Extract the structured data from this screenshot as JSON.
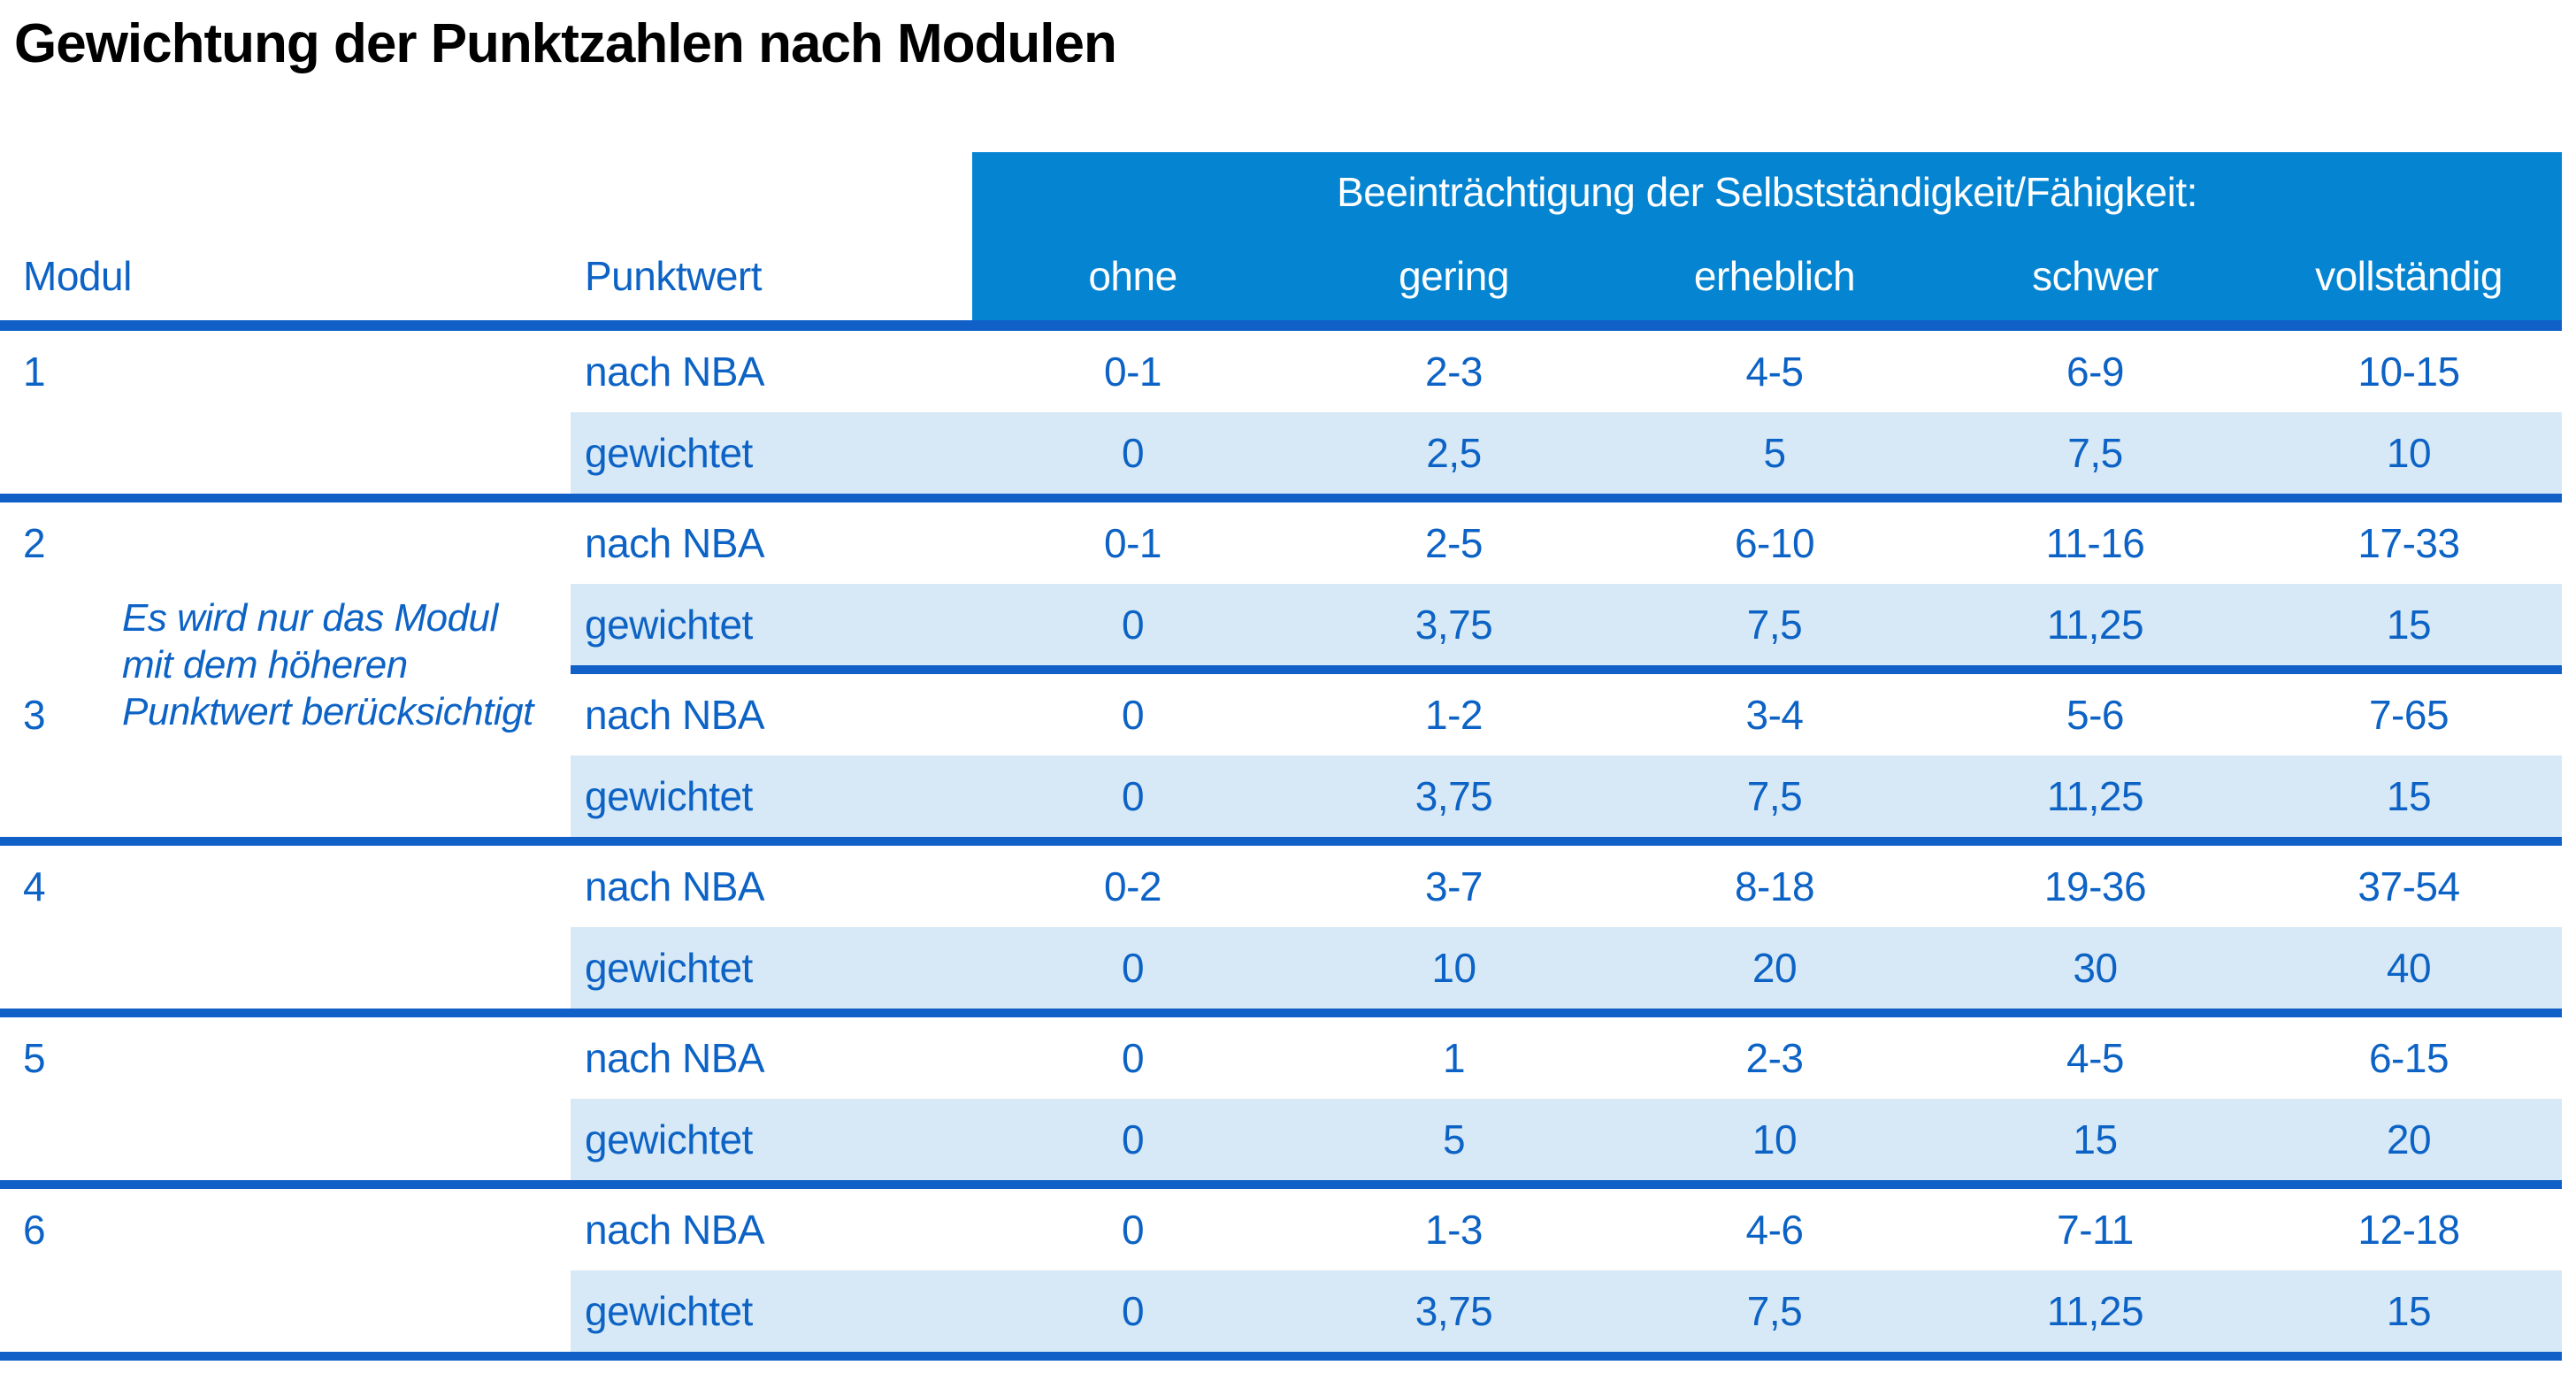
{
  "title": "Gewichtung der Punktzahlen nach Modulen",
  "colors": {
    "header_bg": "#0484D1",
    "row_alt_bg": "#D7E9F6",
    "rule_blue": "#1160C8",
    "text_blue": "#0D63C5",
    "header_text": "#FFFFFF",
    "title_text": "#000000"
  },
  "table": {
    "group_header": "Beeinträchtigung der Selbstständigkeit/Fähigkeit:",
    "modul_header": "Modul",
    "punktwert_header": "Punktwert",
    "severity_headers": [
      "ohne",
      "gering",
      "erheblich",
      "schwer",
      "vollständig"
    ],
    "nba_label": "nach NBA",
    "weighted_label": "gewichtet",
    "note_lines": [
      "Es wird nur das Modul",
      "mit dem höheren",
      "Punktwert berücksichtigt"
    ],
    "modules": [
      {
        "id": "1",
        "nba": [
          "0-1",
          "2-3",
          "4-5",
          "6-9",
          "10-15"
        ],
        "weighted": [
          "0",
          "2,5",
          "5",
          "7,5",
          "10"
        ]
      },
      {
        "id": "2",
        "nba": [
          "0-1",
          "2-5",
          "6-10",
          "11-16",
          "17-33"
        ],
        "weighted": [
          "0",
          "3,75",
          "7,5",
          "11,25",
          "15"
        ]
      },
      {
        "id": "3",
        "nba": [
          "0",
          "1-2",
          "3-4",
          "5-6",
          "7-65"
        ],
        "weighted": [
          "0",
          "3,75",
          "7,5",
          "11,25",
          "15"
        ]
      },
      {
        "id": "4",
        "nba": [
          "0-2",
          "3-7",
          "8-18",
          "19-36",
          "37-54"
        ],
        "weighted": [
          "0",
          "10",
          "20",
          "30",
          "40"
        ]
      },
      {
        "id": "5",
        "nba": [
          "0",
          "1",
          "2-3",
          "4-5",
          "6-15"
        ],
        "weighted": [
          "0",
          "5",
          "10",
          "15",
          "20"
        ]
      },
      {
        "id": "6",
        "nba": [
          "0",
          "1-3",
          "4-6",
          "7-11",
          "12-18"
        ],
        "weighted": [
          "0",
          "3,75",
          "7,5",
          "11,25",
          "15"
        ]
      }
    ]
  }
}
